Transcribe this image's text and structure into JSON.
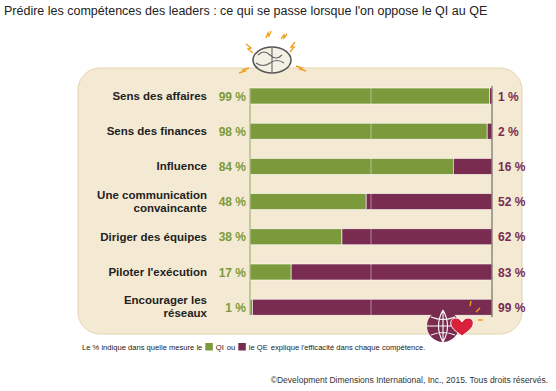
{
  "chart_data": {
    "type": "bar",
    "orientation": "horizontal",
    "stacked": true,
    "title": "Prédire les compétences des leaders : ce qui se passe lorsque l'on oppose le QI au QE",
    "categories": [
      "Sens des affaires",
      "Sens des finances",
      "Influence",
      "Une communication convaincante",
      "Diriger des équipes",
      "Piloter l'exécution",
      "Encourager les réseaux"
    ],
    "series": [
      {
        "name": "QI",
        "color": "#7b9a3b",
        "values": [
          99,
          98,
          84,
          48,
          38,
          17,
          1
        ],
        "value_labels": [
          "99 %",
          "98 %",
          "84 %",
          "48 %",
          "38 %",
          "17 %",
          "1 %"
        ]
      },
      {
        "name": "le QE",
        "color": "#7a2b50",
        "values": [
          1,
          2,
          16,
          52,
          62,
          83,
          99
        ],
        "value_labels": [
          "1 %",
          "2 %",
          "16 %",
          "52 %",
          "62 %",
          "83 %",
          "99 %"
        ]
      }
    ],
    "xlim": [
      0,
      100
    ],
    "xticks": [
      0,
      50,
      100
    ],
    "grid": true,
    "tick_labels": false,
    "data_labels": true,
    "legend": "bottom",
    "annotations": [
      "Le % indique dans quelle mesure le",
      "ou",
      "explique l'efficacité dans chaque compétence.",
      "©Development Dimensions International, Inc., 2015. Tous droits réservés."
    ]
  }
}
